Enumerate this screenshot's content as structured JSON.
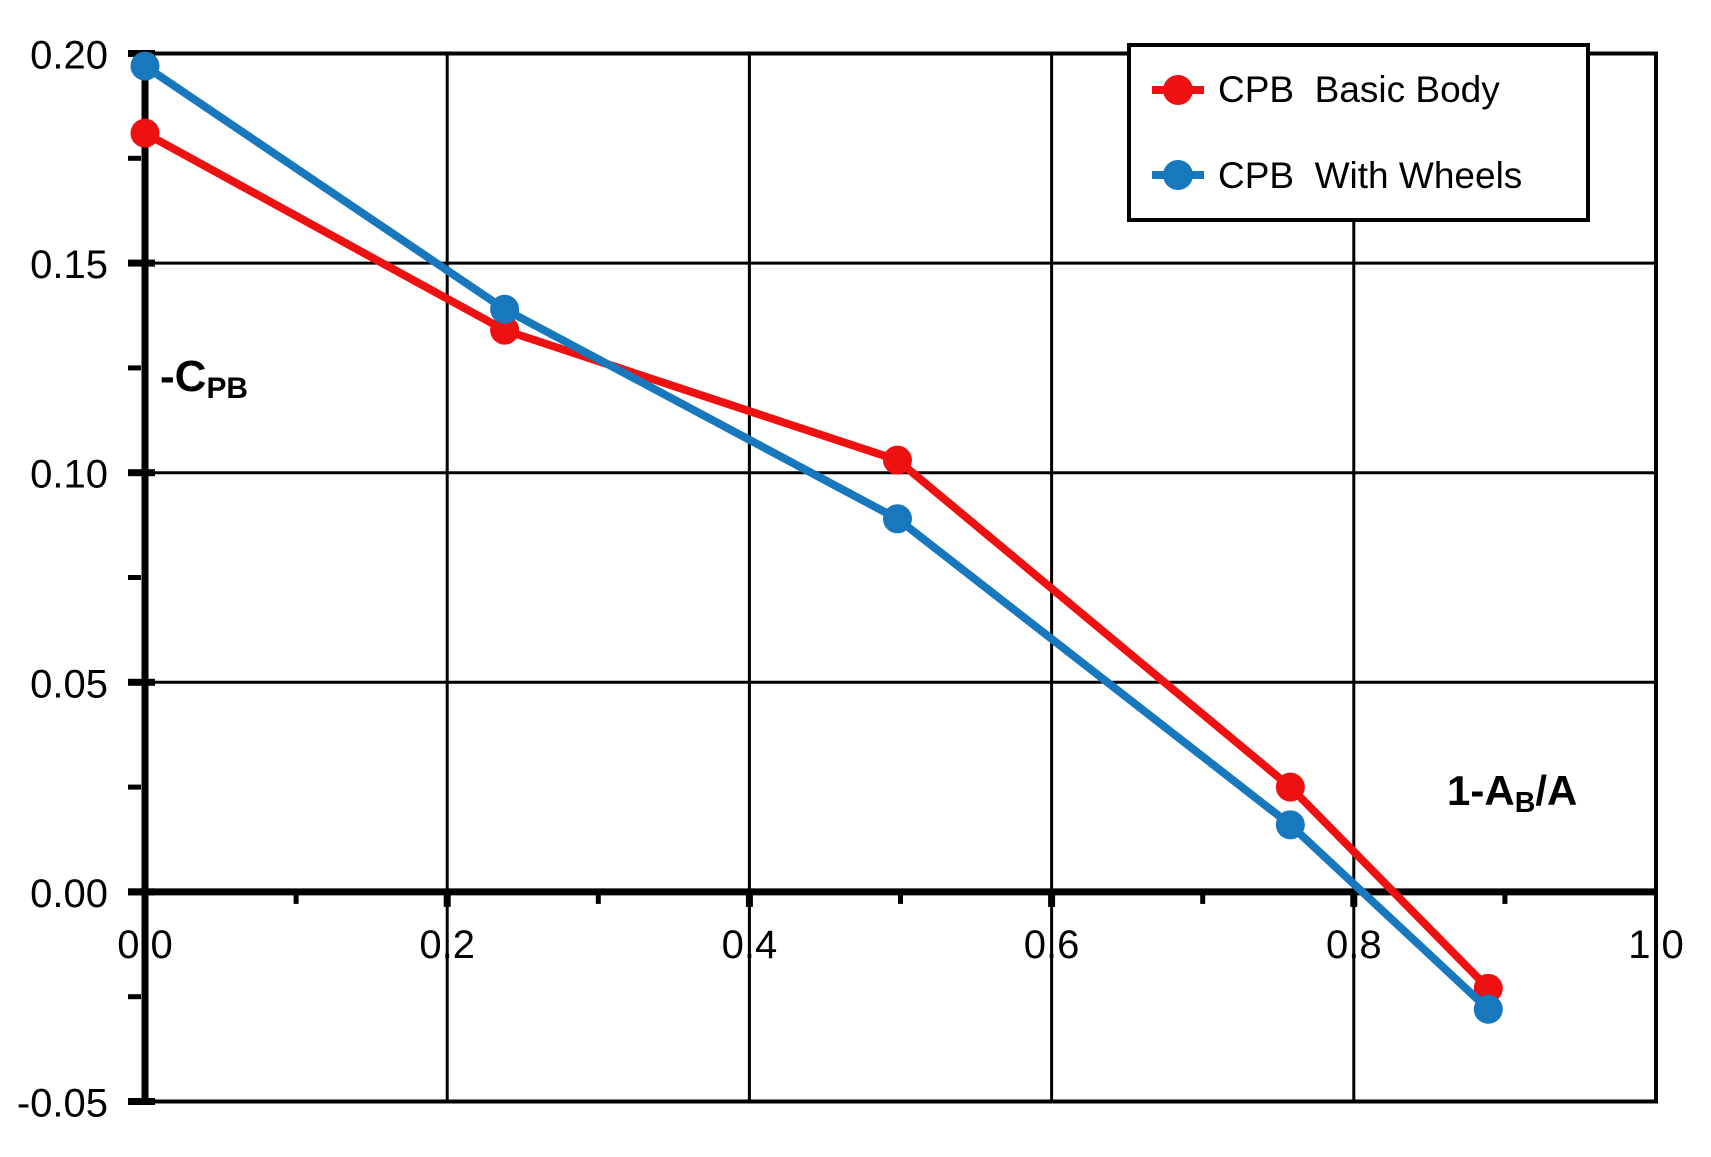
{
  "chart_data": {
    "type": "line",
    "title": "",
    "xlabel": {
      "text": "1-AB/A",
      "parts": [
        {
          "t": "1-A"
        },
        {
          "t": "B",
          "sub": true
        },
        {
          "t": "/A"
        }
      ]
    },
    "ylabel": {
      "text": "-CPB",
      "parts": [
        {
          "t": "-C"
        },
        {
          "t": "PB",
          "sub": true
        }
      ]
    },
    "xlim": [
      0.0,
      1.0
    ],
    "ylim": [
      -0.05,
      0.2
    ],
    "x_major_ticks": [
      0.0,
      0.2,
      0.4,
      0.6,
      0.8,
      1.0
    ],
    "x_tick_labels": [
      "0.0",
      "0.2",
      "0.4",
      "0.6",
      "0.8",
      "1.0"
    ],
    "x_minor_ticks": [
      0.1,
      0.3,
      0.5,
      0.7,
      0.9
    ],
    "y_major_ticks": [
      0.2,
      0.15,
      0.1,
      0.05,
      0.0,
      -0.05
    ],
    "y_tick_labels": [
      "0.20",
      "0.15",
      "0.10",
      "0.05",
      "0.00",
      "-0.05"
    ],
    "y_minor_ticks": [
      0.175,
      0.125,
      0.075,
      0.025,
      -0.025
    ],
    "grid": true,
    "legend_position": "top-right",
    "x": [
      0.0,
      0.238,
      0.498,
      0.758,
      0.889
    ],
    "series": [
      {
        "name": "CPB  Basic Body",
        "color": "#ee1111",
        "values": [
          0.181,
          0.134,
          0.103,
          0.025,
          -0.023
        ]
      },
      {
        "name": "CPB  With Wheels",
        "color": "#1878be",
        "values": [
          0.197,
          0.139,
          0.089,
          0.016,
          -0.028
        ]
      }
    ],
    "axis_color": "#000000",
    "grid_color": "#000000",
    "background_color": "#ffffff"
  }
}
